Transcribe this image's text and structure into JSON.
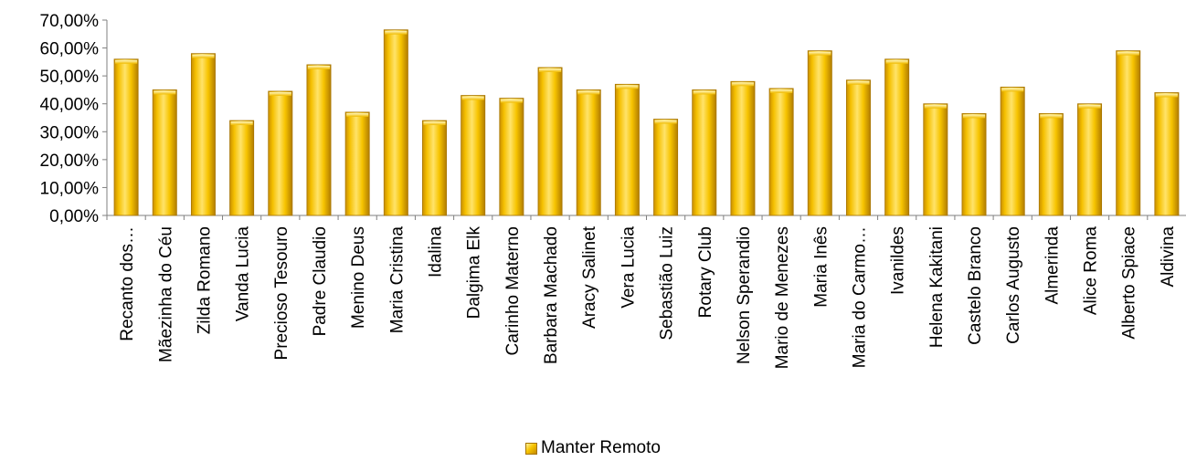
{
  "chart_data": {
    "type": "bar",
    "title": "",
    "xlabel": "",
    "ylabel": "",
    "ylim": [
      0,
      70
    ],
    "y_ticks": [
      "0,00%",
      "10,00%",
      "20,00%",
      "30,00%",
      "40,00%",
      "50,00%",
      "60,00%",
      "70,00%"
    ],
    "grid": false,
    "legend_position": "bottom",
    "bar_color": "#f2b800",
    "categories": [
      "Recanto dos…",
      "Mãezinha do Céu",
      "Zilda Romano",
      "Vanda Lucia",
      "Precioso Tesouro",
      "Padre Claudio",
      "Menino Deus",
      "Maria Cristina",
      "Idalina",
      "Dalgima Elk",
      "Carinho Materno",
      "Barbara Machado",
      "Aracy Salinet",
      "Vera Lucia",
      "Sebastião Luiz",
      "Rotary Club",
      "Nelson Sperandio",
      "Mario de Menezes",
      "Maria Inês",
      "Maria do Carmo…",
      "Ivanildes",
      "Helena Kakitani",
      "Castelo Branco",
      "Carlos Augusto",
      "Almerinda",
      "Alice Roma",
      "Alberto Spiace",
      "Aldivina"
    ],
    "series": [
      {
        "name": "Manter Remoto",
        "values": [
          56,
          45,
          58,
          34,
          44.5,
          54,
          37,
          66.5,
          34,
          43,
          42,
          53,
          45,
          47,
          34.5,
          45,
          48,
          45.5,
          59,
          48.5,
          56,
          40,
          36.5,
          46,
          36.5,
          40,
          59,
          44
        ]
      }
    ]
  }
}
